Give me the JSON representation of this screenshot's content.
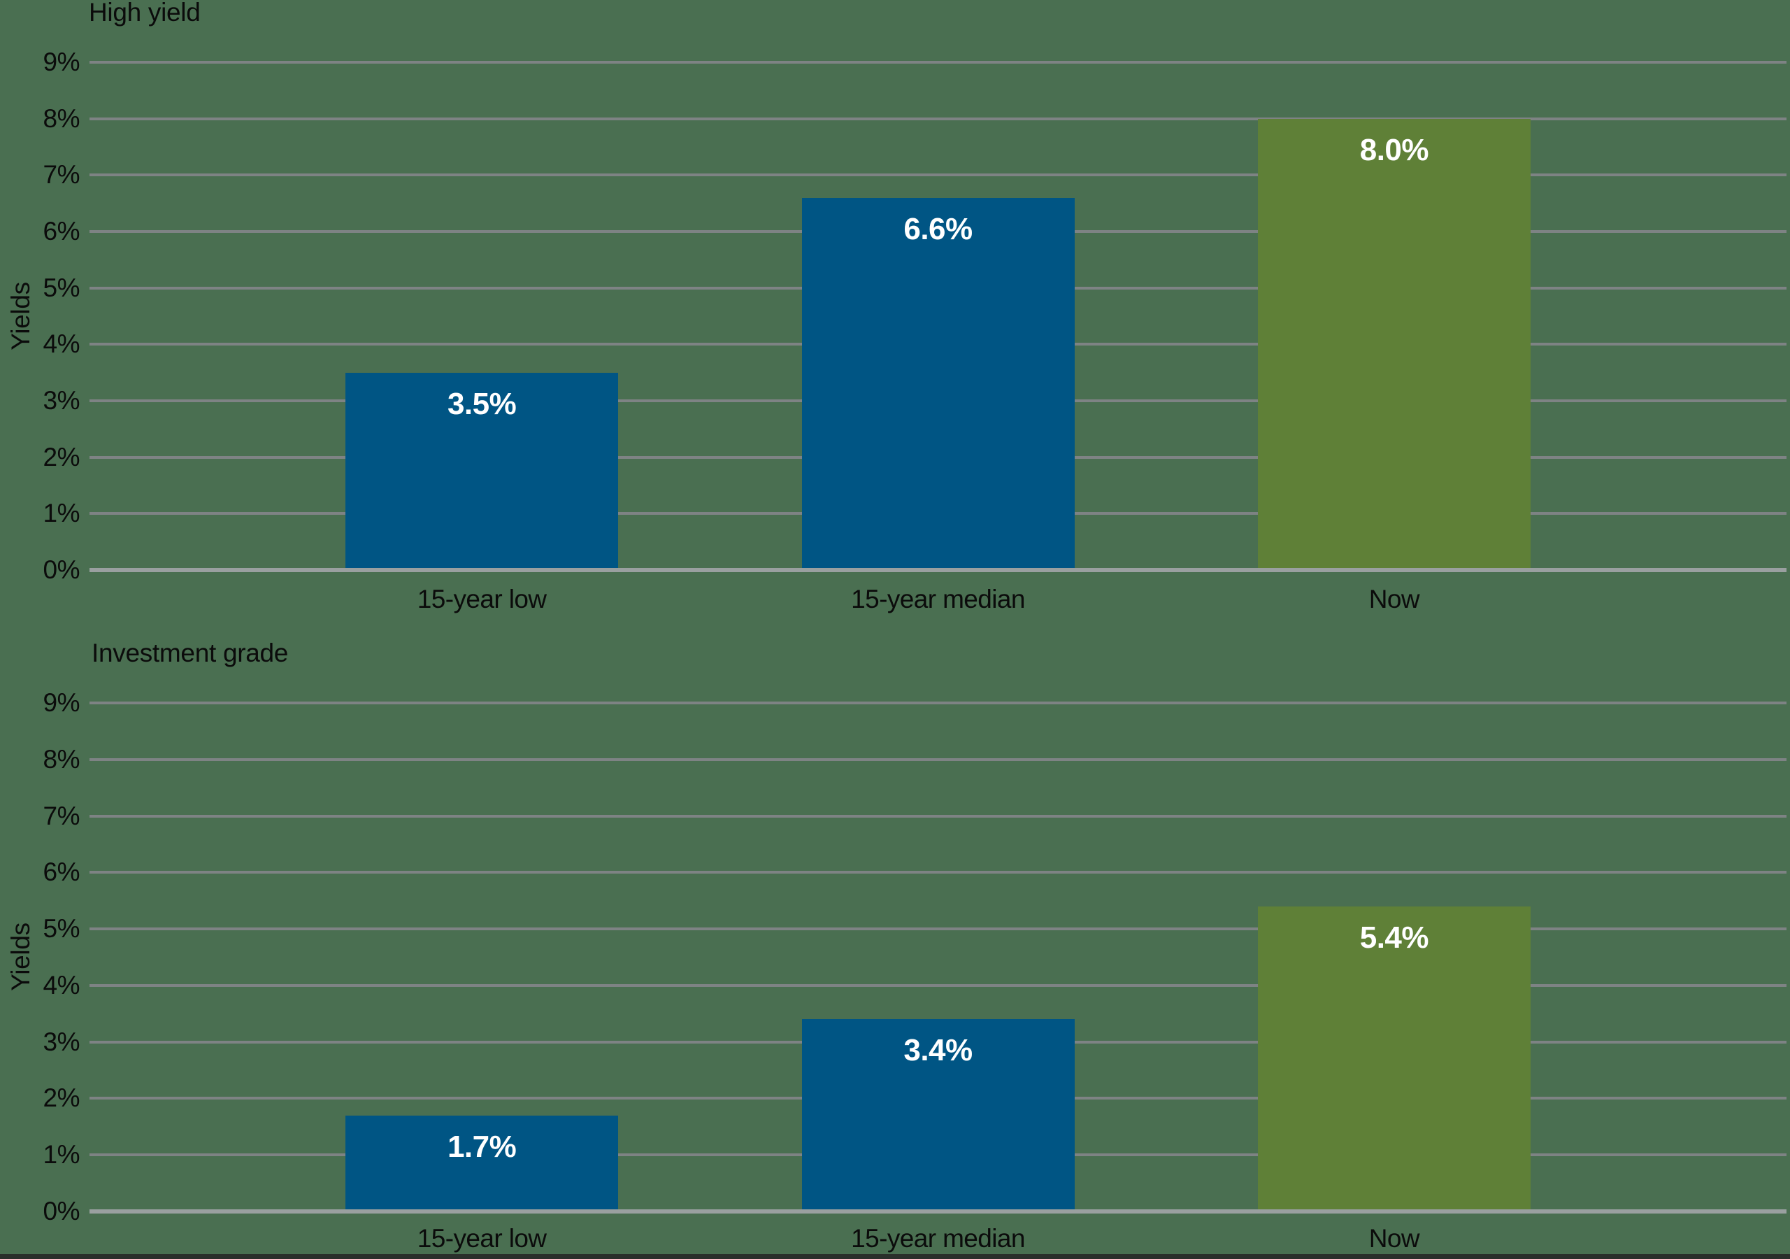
{
  "page": {
    "background_color": "#4A6F51",
    "bottom_strip_color": "#2B2F2B"
  },
  "colors": {
    "bar_blue": "#005584",
    "bar_green": "#5F8037",
    "gridline": "#7E8384",
    "axis_line": "#9AA0A0",
    "text": "#0b0b0b",
    "bar_label_text": "#FFFFFF"
  },
  "chart_data": [
    {
      "type": "bar",
      "title": "High yield",
      "ylabel": "Yields",
      "xlabel": "",
      "categories": [
        "15-year low",
        "15-year median",
        "Now"
      ],
      "values": [
        3.5,
        6.6,
        8.0
      ],
      "bar_labels": [
        "3.5%",
        "6.6%",
        "8.0%"
      ],
      "bar_colors": [
        "#005584",
        "#005584",
        "#5F8037"
      ],
      "ylim": [
        0,
        9
      ],
      "yticks": [
        0,
        1,
        2,
        3,
        4,
        5,
        6,
        7,
        8,
        9
      ],
      "ytick_labels": [
        "0%",
        "1%",
        "2%",
        "3%",
        "4%",
        "5%",
        "6%",
        "7%",
        "8%",
        "9%"
      ],
      "grid": "horizontal",
      "legend": "none"
    },
    {
      "type": "bar",
      "title": "Investment grade",
      "ylabel": "Yields",
      "xlabel": "",
      "categories": [
        "15-year low",
        "15-year median",
        "Now"
      ],
      "values": [
        1.7,
        3.4,
        5.4
      ],
      "bar_labels": [
        "1.7%",
        "3.4%",
        "5.4%"
      ],
      "bar_colors": [
        "#005584",
        "#005584",
        "#5F8037"
      ],
      "ylim": [
        0,
        9
      ],
      "yticks": [
        0,
        1,
        2,
        3,
        4,
        5,
        6,
        7,
        8,
        9
      ],
      "ytick_labels": [
        "0%",
        "1%",
        "2%",
        "3%",
        "4%",
        "5%",
        "6%",
        "7%",
        "8%",
        "9%"
      ],
      "grid": "horizontal",
      "legend": "none"
    }
  ]
}
